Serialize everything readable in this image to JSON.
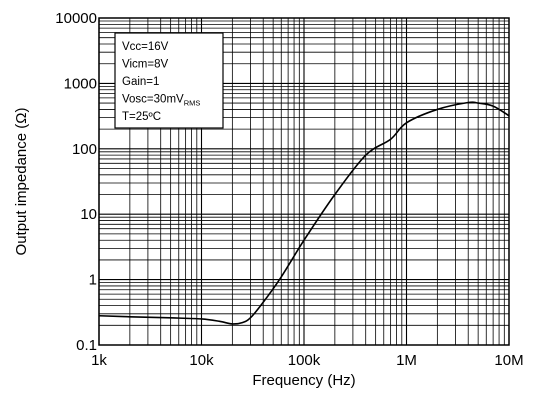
{
  "chart_data": {
    "type": "line",
    "xlabel": "Frequency (Hz)",
    "ylabel": "Output impedance (Ω)",
    "x_scale": "log",
    "y_scale": "log",
    "xlim": [
      1000,
      10000000
    ],
    "ylim": [
      0.1,
      10000
    ],
    "grid": true,
    "x_ticks": [
      "1k",
      "10k",
      "100k",
      "1M",
      "10M"
    ],
    "y_ticks": [
      "0.1",
      "1",
      "10",
      "100",
      "1000",
      "10000"
    ],
    "series": [
      {
        "x": [
          1000,
          2000,
          5000,
          10000,
          15000,
          20000,
          25000,
          30000,
          40000,
          60000,
          100000,
          200000,
          400000,
          700000,
          1000000,
          2000000,
          4000000,
          5000000,
          7000000,
          10000000
        ],
        "y": [
          0.28,
          0.27,
          0.26,
          0.25,
          0.23,
          0.21,
          0.22,
          0.26,
          0.45,
          1.1,
          4.0,
          20,
          80,
          140,
          250,
          400,
          510,
          500,
          450,
          320
        ]
      }
    ],
    "legend": {
      "placement": "top-left",
      "lines": [
        {
          "text": "Vcc=16V"
        },
        {
          "text": "Vicm=8V"
        },
        {
          "text": "Gain=1"
        },
        {
          "text": "Vosc=30mV",
          "sub": "RMS"
        },
        {
          "text": "T=25ºC"
        }
      ]
    }
  }
}
